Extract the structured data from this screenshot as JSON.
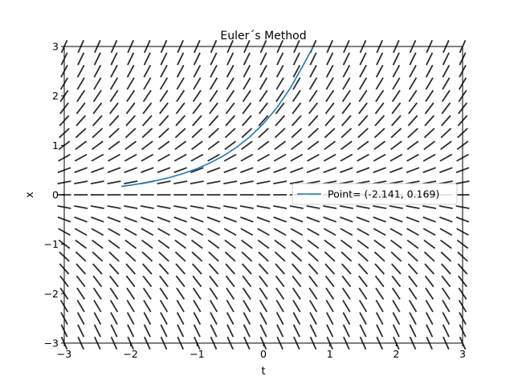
{
  "chart_data": {
    "type": "line",
    "title": "Euler´s Method",
    "xlabel": "t",
    "ylabel": "x",
    "xlim": [
      -3,
      3
    ],
    "ylim": [
      -3,
      3
    ],
    "xticks": [
      -3,
      -2,
      -1,
      0,
      1,
      2,
      3
    ],
    "yticks": [
      -3,
      -2,
      -1,
      0,
      1,
      2,
      3
    ],
    "xtick_labels": [
      "−3",
      "−2",
      "−1",
      "0",
      "1",
      "2",
      "3"
    ],
    "ytick_labels": [
      "−3",
      "−2",
      "−1",
      "0",
      "1",
      "2",
      "3"
    ],
    "grid": false,
    "legend_placement": "center-right",
    "slope_field": {
      "equation_slope": "x",
      "t_values": [
        -3,
        -2.75,
        -2.5,
        -2.25,
        -2,
        -1.75,
        -1.5,
        -1.25,
        -1,
        -0.75,
        -0.5,
        -0.25,
        0,
        0.25,
        0.5,
        0.75,
        1,
        1.25,
        1.5,
        1.75,
        2,
        2.25,
        2.5,
        2.75,
        3
      ],
      "x_values": [
        -3,
        -2.75,
        -2.5,
        -2.25,
        -2,
        -1.75,
        -1.5,
        -1.25,
        -1,
        -0.75,
        -0.5,
        -0.25,
        0,
        0.25,
        0.5,
        0.75,
        1,
        1.25,
        1.5,
        1.75,
        2,
        2.25,
        2.5,
        2.75,
        3
      ],
      "color": "#2b2b2b"
    },
    "series": [
      {
        "name": "Point= (-2.141, 0.169)",
        "color": "#1f77b4",
        "x": [
          -2.141,
          -2.0,
          -1.8,
          -1.6,
          -1.4,
          -1.2,
          -1.0,
          -0.8,
          -0.6,
          -0.4,
          -0.2,
          0.0,
          0.2,
          0.4,
          0.6,
          0.75
        ],
        "y": [
          0.169,
          0.195,
          0.238,
          0.291,
          0.355,
          0.434,
          0.53,
          0.647,
          0.79,
          0.965,
          1.178,
          1.439,
          1.758,
          2.147,
          2.622,
          3.0
        ]
      }
    ]
  }
}
